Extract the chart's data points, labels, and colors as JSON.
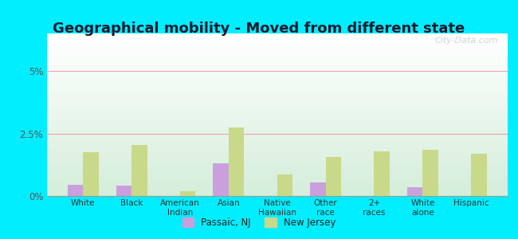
{
  "title": "Geographical mobility - Moved from different state",
  "categories": [
    "White",
    "Black",
    "American\nIndian",
    "Asian",
    "Native\nHawaiian",
    "Other\nrace",
    "2+\nraces",
    "White\nalone",
    "Hispanic"
  ],
  "passaic_nj": [
    0.45,
    0.4,
    0.0,
    1.3,
    0.0,
    0.55,
    0.0,
    0.35,
    0.0
  ],
  "new_jersey": [
    1.75,
    2.05,
    0.18,
    2.75,
    0.85,
    1.55,
    1.8,
    1.85,
    1.7
  ],
  "passaic_color": "#c9a0dc",
  "new_jersey_color": "#c8d98a",
  "bg_top_color": "#ffffff",
  "bg_bottom_color": "#d4edda",
  "outer_bg": "#00eeff",
  "ylim": [
    0,
    6.5
  ],
  "yticks": [
    0,
    2.5,
    5.0
  ],
  "yticklabels": [
    "0%",
    "2.5%",
    "5%"
  ],
  "grid_color": "#f0a0b0",
  "bar_width": 0.32,
  "title_fontsize": 13,
  "legend_passaic": "Passaic, NJ",
  "legend_nj": "New Jersey",
  "watermark": "City-Data.com"
}
